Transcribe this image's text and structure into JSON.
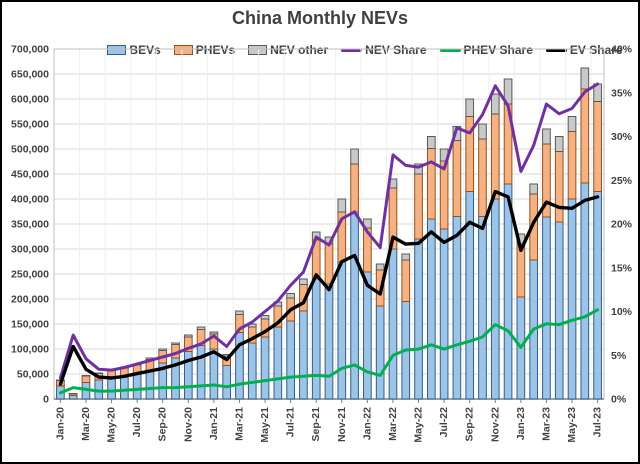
{
  "title": "China Monthly NEVs",
  "colors": {
    "bev_fill": "#9DC3E6",
    "bev_border": "#2E5F8A",
    "phev_fill": "#F4B183",
    "phev_border": "#995017",
    "other_fill": "#C9C9C9",
    "other_border": "#595959",
    "nev_share_line": "#7030A0",
    "phev_share_line": "#00B050",
    "ev_share_line": "#000000",
    "text": "#404040",
    "gridline": "#D9D9D9",
    "axis": "#808080",
    "plot_border": "#BFBFBF"
  },
  "legend": [
    {
      "label": "BEVs",
      "type": "bar",
      "color": "#9DC3E6",
      "border": "#2E5F8A"
    },
    {
      "label": "PHEVs",
      "type": "bar",
      "color": "#F4B183",
      "border": "#995017"
    },
    {
      "label": "NEV other",
      "type": "bar",
      "color": "#C9C9C9",
      "border": "#595959"
    },
    {
      "label": "NEV Share",
      "type": "line",
      "color": "#7030A0"
    },
    {
      "label": "PHEV Share",
      "type": "line",
      "color": "#00B050"
    },
    {
      "label": "EV Share",
      "type": "line",
      "color": "#000000"
    }
  ],
  "chart_data": {
    "type": "bar+line combo (stacked bars, dual axis)",
    "title": "China Monthly NEVs",
    "xlabel": "",
    "ylabel_left": "",
    "ylabel_right": "",
    "grid": true,
    "legend_position": "top",
    "months": [
      "Jan-20",
      "Feb-20",
      "Mar-20",
      "Apr-20",
      "May-20",
      "Jun-20",
      "Jul-20",
      "Aug-20",
      "Sep-20",
      "Oct-20",
      "Nov-20",
      "Dec-20",
      "Jan-21",
      "Feb-21",
      "Mar-21",
      "Apr-21",
      "May-21",
      "Jun-21",
      "Jul-21",
      "Aug-21",
      "Sep-21",
      "Oct-21",
      "Nov-21",
      "Dec-21",
      "Jan-22",
      "Feb-22",
      "Mar-22",
      "Apr-22",
      "May-22",
      "Jun-22",
      "Jul-22",
      "Aug-22",
      "Sep-22",
      "Oct-22",
      "Nov-22",
      "Dec-22",
      "Jan-23",
      "Feb-23",
      "Mar-23",
      "Apr-23",
      "May-23",
      "Jun-23",
      "Jul-23"
    ],
    "x_tick_every": 2,
    "left_axis": {
      "min": 0,
      "max": 700000,
      "step": 50000,
      "tick_labels": [
        "0",
        "50,000",
        "100,000",
        "150,000",
        "200,000",
        "250,000",
        "300,000",
        "350,000",
        "400,000",
        "450,000",
        "500,000",
        "550,000",
        "600,000",
        "650,000",
        "700,000"
      ]
    },
    "right_axis": {
      "min": 0,
      "max": 40,
      "step": 5,
      "tick_labels": [
        "0%",
        "5%",
        "10%",
        "15%",
        "20%",
        "25%",
        "30%",
        "35%",
        "40%"
      ]
    },
    "series": [
      {
        "name": "BEVs",
        "type": "bar",
        "axis": "left",
        "values": [
          26000,
          7000,
          33000,
          38000,
          42000,
          46000,
          50000,
          58000,
          72000,
          82000,
          95000,
          107000,
          100000,
          67000,
          133000,
          112000,
          124000,
          144000,
          156000,
          176000,
          240000,
          230000,
          274000,
          374000,
          254000,
          186000,
          300000,
          195000,
          320000,
          360000,
          340000,
          365000,
          415000,
          365000,
          400000,
          430000,
          204000,
          278000,
          364000,
          354000,
          400000,
          432000,
          415000
        ]
      },
      {
        "name": "PHEVs",
        "type": "bar",
        "axis": "left",
        "values": [
          11000,
          3500,
          13000,
          13000,
          15000,
          16000,
          18000,
          21000,
          25000,
          27000,
          29000,
          32000,
          30000,
          19000,
          36000,
          32000,
          36000,
          42000,
          46000,
          53000,
          78000,
          80000,
          100000,
          96000,
          88000,
          72000,
          122000,
          83000,
          130000,
          141000,
          136000,
          152000,
          150000,
          155000,
          170000,
          160000,
          106000,
          132000,
          146000,
          141000,
          135000,
          188000,
          180000
        ]
      },
      {
        "name": "NEV other",
        "type": "bar",
        "axis": "left",
        "values": [
          1000,
          500,
          1000,
          1000,
          1000,
          2000,
          2000,
          3000,
          3000,
          3000,
          4000,
          5000,
          4000,
          3000,
          7000,
          6000,
          7000,
          8000,
          9000,
          11000,
          16000,
          14000,
          26000,
          30000,
          18000,
          12000,
          18000,
          12000,
          20000,
          24000,
          24000,
          28000,
          35000,
          30000,
          40000,
          50000,
          20000,
          20000,
          30000,
          30000,
          30000,
          42000,
          35000
        ]
      },
      {
        "name": "NEV Share",
        "type": "line",
        "axis": "right",
        "values": [
          2.4,
          7.3,
          4.6,
          3.4,
          3.3,
          3.6,
          4.0,
          4.4,
          4.8,
          5.2,
          5.8,
          6.3,
          7.2,
          6.0,
          8.0,
          8.8,
          10.0,
          11.2,
          13.0,
          14.5,
          18.5,
          17.6,
          20.6,
          21.4,
          19.1,
          17.3,
          27.9,
          26.7,
          26.5,
          27.1,
          26.3,
          31.0,
          30.4,
          32.5,
          35.8,
          33.5,
          26.0,
          29.0,
          33.7,
          32.6,
          33.2,
          35.1,
          36.0
        ]
      },
      {
        "name": "PHEV Share",
        "type": "line",
        "axis": "right",
        "values": [
          0.7,
          1.3,
          1.1,
          0.9,
          0.9,
          1.0,
          1.1,
          1.2,
          1.3,
          1.3,
          1.4,
          1.5,
          1.6,
          1.4,
          1.7,
          1.9,
          2.1,
          2.3,
          2.5,
          2.6,
          2.7,
          2.6,
          3.5,
          3.9,
          3.1,
          2.7,
          5.0,
          5.6,
          5.7,
          6.2,
          5.7,
          6.2,
          6.6,
          7.1,
          8.5,
          7.8,
          5.9,
          8.0,
          8.6,
          8.5,
          9.0,
          9.4,
          10.2
        ]
      },
      {
        "name": "EV Share",
        "type": "line",
        "axis": "right",
        "values": [
          1.7,
          6.0,
          3.4,
          2.5,
          2.4,
          2.6,
          2.9,
          3.2,
          3.5,
          3.9,
          4.4,
          4.8,
          5.4,
          4.5,
          6.2,
          6.9,
          7.7,
          8.7,
          10.2,
          11.0,
          14.2,
          12.5,
          15.7,
          16.4,
          13.0,
          12.0,
          18.5,
          17.7,
          17.8,
          19.1,
          17.9,
          18.7,
          20.2,
          19.5,
          23.7,
          23.1,
          17.0,
          20.2,
          22.5,
          21.9,
          21.8,
          22.7,
          23.1
        ]
      }
    ]
  }
}
